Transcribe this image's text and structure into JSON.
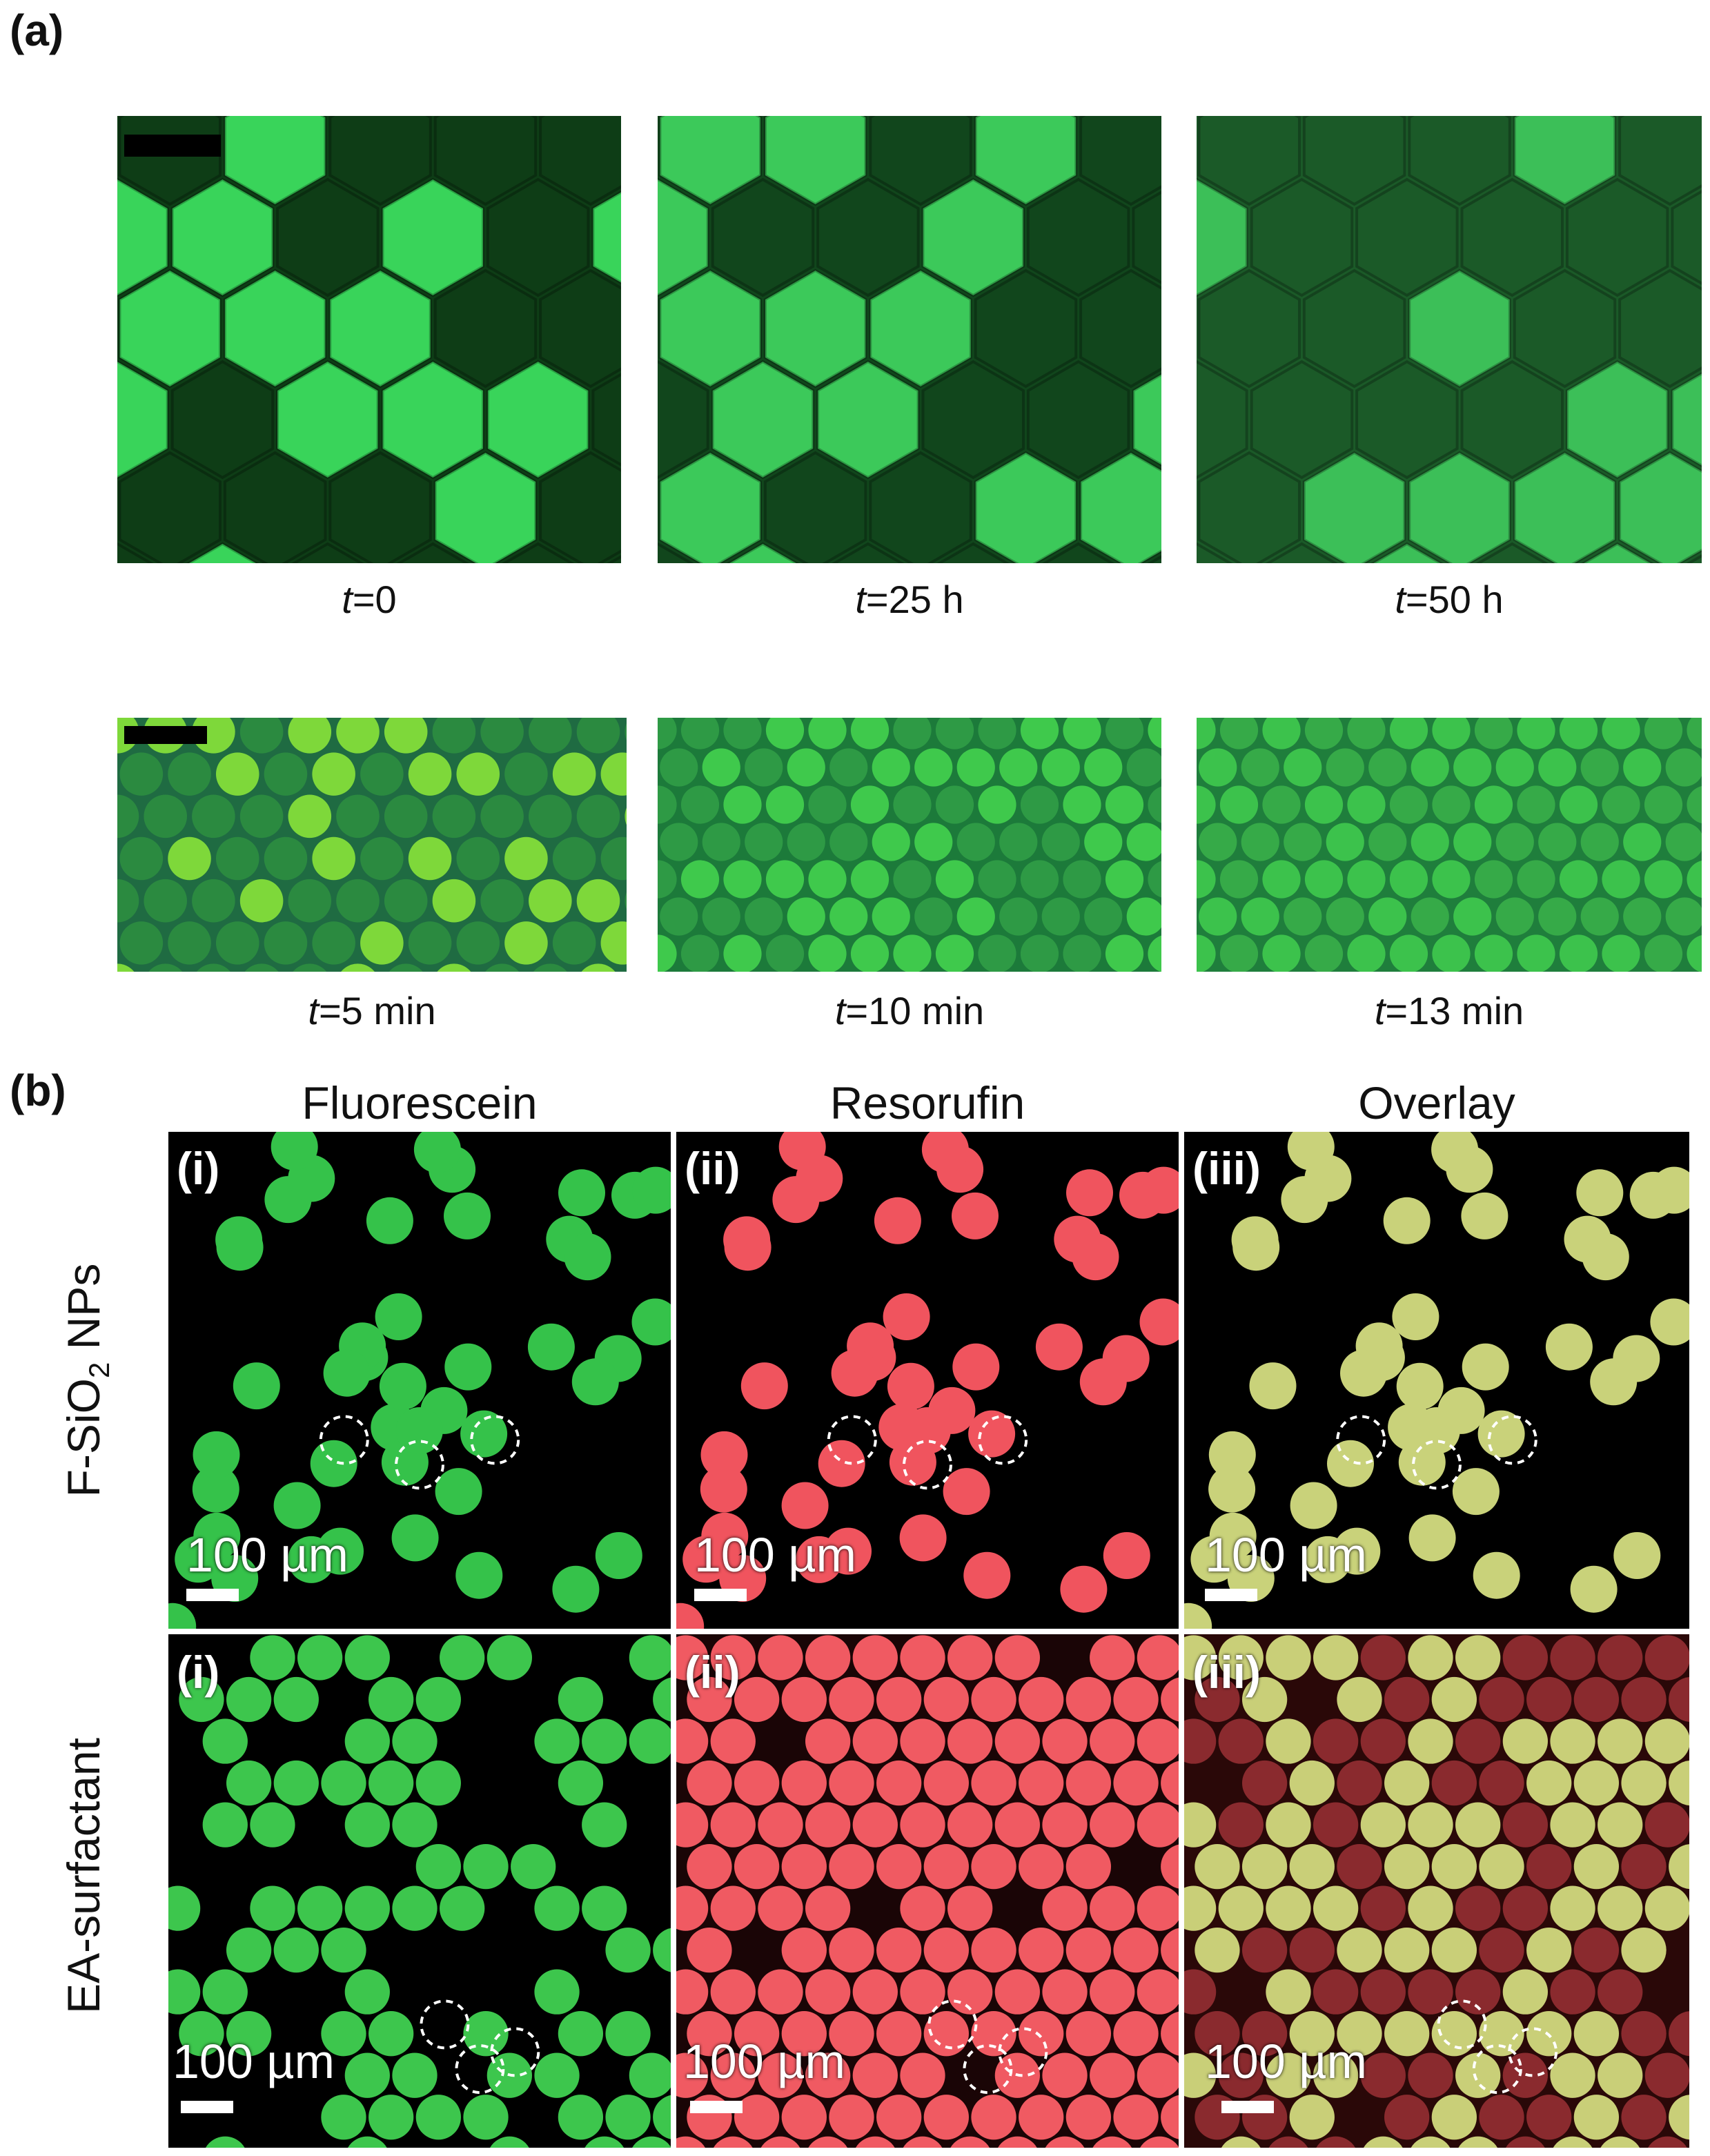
{
  "figure": {
    "panel_a_label": "(a)",
    "panel_b_label": "(b)",
    "panel_a": {
      "row1": [
        {
          "time_symbol": "t",
          "time_value": "=0"
        },
        {
          "time_symbol": "t",
          "time_value": "=25 h"
        },
        {
          "time_symbol": "t",
          "time_value": "=50 h"
        }
      ],
      "row2": [
        {
          "time_symbol": "t",
          "time_value": "=5 min"
        },
        {
          "time_symbol": "t",
          "time_value": "=10 min"
        },
        {
          "time_symbol": "t",
          "time_value": "=13 min"
        }
      ]
    },
    "panel_b": {
      "columns": [
        "Fluorescein",
        "Resorufin",
        "Overlay"
      ],
      "rows": [
        {
          "label_main": "F-SiO",
          "label_sub": "2",
          "label_tail": " NPs"
        },
        {
          "label_main": "EA-surfactant",
          "label_sub": "",
          "label_tail": ""
        }
      ],
      "sublabels": [
        "(i)",
        "(ii)",
        "(iii)"
      ],
      "scale_label": "100 µm"
    }
  }
}
